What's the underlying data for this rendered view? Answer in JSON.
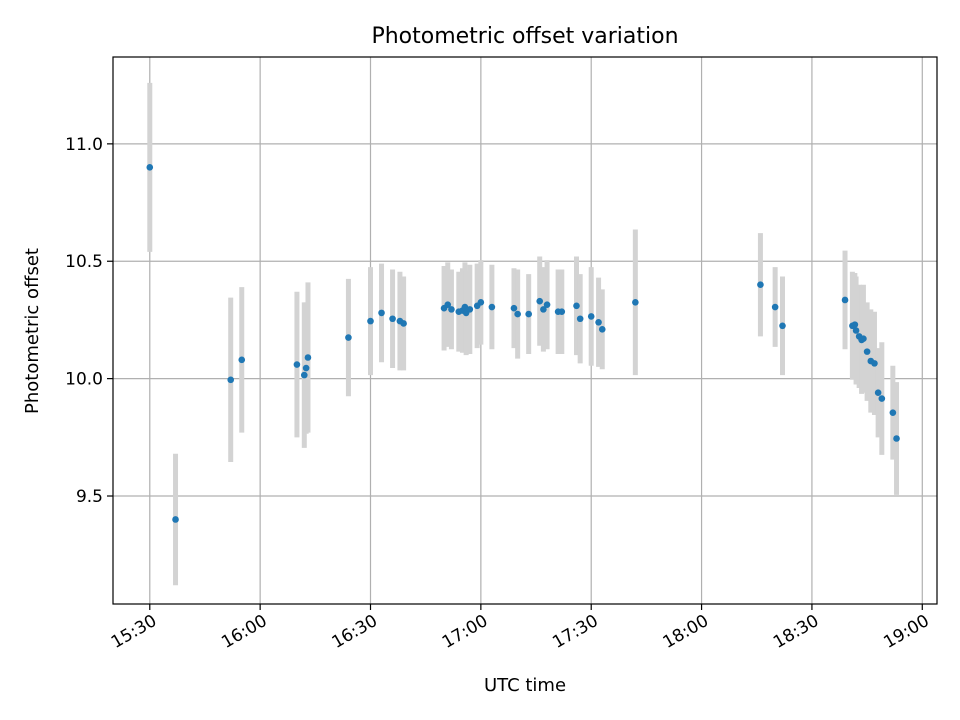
{
  "chart_data": {
    "type": "scatter",
    "title": "Photometric offset variation",
    "xlabel": "UTC time",
    "ylabel": "Photometric offset",
    "x_tick_labels": [
      "15:30",
      "16:00",
      "16:30",
      "17:00",
      "17:30",
      "18:00",
      "18:30",
      "19:00"
    ],
    "y_tick_labels": [
      "9.5",
      "10.0",
      "10.5",
      "11.0"
    ],
    "y_ticks": [
      9.5,
      10.0,
      10.5,
      11.0
    ],
    "ylim": [
      9.04,
      11.37
    ],
    "xlim": [
      "15:20",
      "19:04"
    ],
    "grid": true,
    "colors": {
      "point": "#1f77b4",
      "errorbar": "#d3d3d3",
      "grid": "#b0b0b0"
    },
    "series": [
      {
        "points": [
          {
            "x": "15:30",
            "y": 10.9,
            "err": 0.36
          },
          {
            "x": "15:37",
            "y": 9.4,
            "err": 0.28
          },
          {
            "x": "15:52",
            "y": 9.995,
            "err": 0.35
          },
          {
            "x": "15:55",
            "y": 10.08,
            "err": 0.31
          },
          {
            "x": "16:10",
            "y": 10.06,
            "err": 0.31
          },
          {
            "x": "16:12",
            "y": 10.015,
            "err": 0.31
          },
          {
            "x": "16:12:30",
            "y": 10.045,
            "err": 0.28
          },
          {
            "x": "16:13",
            "y": 10.09,
            "err": 0.32
          },
          {
            "x": "16:24",
            "y": 10.175,
            "err": 0.25
          },
          {
            "x": "16:30",
            "y": 10.245,
            "err": 0.23
          },
          {
            "x": "16:33",
            "y": 10.28,
            "err": 0.21
          },
          {
            "x": "16:36",
            "y": 10.255,
            "err": 0.21
          },
          {
            "x": "16:38",
            "y": 10.245,
            "err": 0.21
          },
          {
            "x": "16:39",
            "y": 10.235,
            "err": 0.2
          },
          {
            "x": "16:50",
            "y": 10.3,
            "err": 0.18
          },
          {
            "x": "16:51",
            "y": 10.315,
            "err": 0.18
          },
          {
            "x": "16:52",
            "y": 10.295,
            "err": 0.17
          },
          {
            "x": "16:54",
            "y": 10.285,
            "err": 0.17
          },
          {
            "x": "16:55",
            "y": 10.29,
            "err": 0.18
          },
          {
            "x": "16:55:40",
            "y": 10.305,
            "err": 0.19
          },
          {
            "x": "16:56",
            "y": 10.28,
            "err": 0.18
          },
          {
            "x": "16:57",
            "y": 10.295,
            "err": 0.19
          },
          {
            "x": "16:59",
            "y": 10.31,
            "err": 0.18
          },
          {
            "x": "17:00",
            "y": 10.325,
            "err": 0.18
          },
          {
            "x": "17:03",
            "y": 10.305,
            "err": 0.18
          },
          {
            "x": "17:09",
            "y": 10.3,
            "err": 0.17
          },
          {
            "x": "17:10",
            "y": 10.275,
            "err": 0.19
          },
          {
            "x": "17:13",
            "y": 10.275,
            "err": 0.17
          },
          {
            "x": "17:16",
            "y": 10.33,
            "err": 0.19
          },
          {
            "x": "17:17",
            "y": 10.295,
            "err": 0.18
          },
          {
            "x": "17:18",
            "y": 10.315,
            "err": 0.19
          },
          {
            "x": "17:21",
            "y": 10.285,
            "err": 0.18
          },
          {
            "x": "17:22",
            "y": 10.285,
            "err": 0.18
          },
          {
            "x": "17:26",
            "y": 10.31,
            "err": 0.21
          },
          {
            "x": "17:27",
            "y": 10.255,
            "err": 0.19
          },
          {
            "x": "17:30",
            "y": 10.265,
            "err": 0.21
          },
          {
            "x": "17:32",
            "y": 10.24,
            "err": 0.19
          },
          {
            "x": "17:33",
            "y": 10.21,
            "err": 0.17
          },
          {
            "x": "17:42",
            "y": 10.325,
            "err": 0.31
          },
          {
            "x": "18:16",
            "y": 10.4,
            "err": 0.22
          },
          {
            "x": "18:20",
            "y": 10.305,
            "err": 0.17
          },
          {
            "x": "18:22",
            "y": 10.225,
            "err": 0.21
          },
          {
            "x": "18:39",
            "y": 10.335,
            "err": 0.21
          },
          {
            "x": "18:41",
            "y": 10.225,
            "err": 0.23
          },
          {
            "x": "18:41:40",
            "y": 10.23,
            "err": 0.22
          },
          {
            "x": "18:42",
            "y": 10.205,
            "err": 0.23
          },
          {
            "x": "18:42:50",
            "y": 10.18,
            "err": 0.22
          },
          {
            "x": "18:43:30",
            "y": 10.165,
            "err": 0.23
          },
          {
            "x": "18:44",
            "y": 10.17,
            "err": 0.23
          },
          {
            "x": "18:45",
            "y": 10.115,
            "err": 0.21
          },
          {
            "x": "18:46",
            "y": 10.075,
            "err": 0.22
          },
          {
            "x": "18:47",
            "y": 10.065,
            "err": 0.22
          },
          {
            "x": "18:48",
            "y": 9.94,
            "err": 0.19
          },
          {
            "x": "18:49",
            "y": 9.915,
            "err": 0.24
          },
          {
            "x": "18:52",
            "y": 9.855,
            "err": 0.2
          },
          {
            "x": "18:53",
            "y": 9.745,
            "err": 0.24
          }
        ]
      }
    ]
  }
}
